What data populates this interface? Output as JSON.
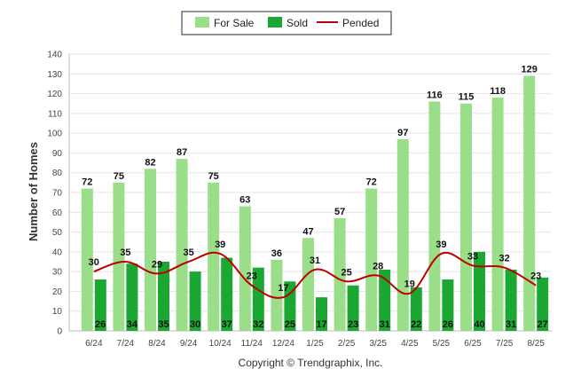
{
  "chart_data": {
    "type": "bar",
    "categories": [
      "6/24",
      "7/24",
      "8/24",
      "9/24",
      "10/24",
      "11/24",
      "12/24",
      "1/25",
      "2/25",
      "3/25",
      "4/25",
      "5/25",
      "6/25",
      "7/25",
      "8/25"
    ],
    "series": [
      {
        "name": "For Sale",
        "kind": "bar",
        "color": "#9bde8a",
        "values": [
          72,
          75,
          82,
          87,
          75,
          63,
          36,
          47,
          57,
          72,
          97,
          116,
          115,
          118,
          129
        ]
      },
      {
        "name": "Sold",
        "kind": "bar",
        "color": "#1aa832",
        "values": [
          26,
          34,
          35,
          30,
          37,
          32,
          25,
          17,
          23,
          31,
          22,
          26,
          40,
          31,
          27
        ]
      },
      {
        "name": "Pended",
        "kind": "line",
        "color": "#c00000",
        "values": [
          30,
          35,
          29,
          35,
          39,
          23,
          17,
          31,
          25,
          28,
          19,
          39,
          33,
          32,
          23
        ]
      }
    ],
    "ylabel": "Number of Homes",
    "xlabel": "",
    "ylim": [
      0,
      140
    ],
    "yticks": [
      0,
      10,
      20,
      30,
      40,
      50,
      60,
      70,
      80,
      90,
      100,
      110,
      120,
      130,
      140
    ],
    "grid": true,
    "legend_position": "top-center"
  },
  "footer": {
    "copyright": "Copyright © Trendgraphix, Inc."
  }
}
